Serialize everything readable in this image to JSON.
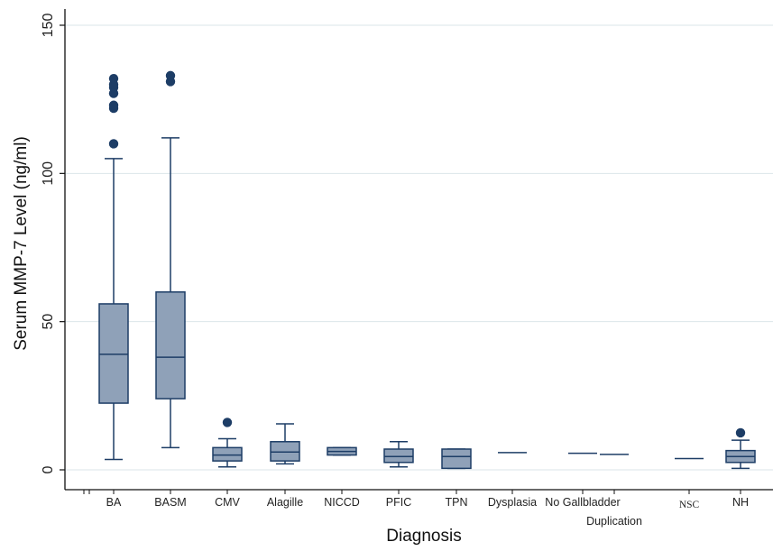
{
  "chart_data": {
    "type": "box",
    "title": "",
    "xlabel": "Diagnosis",
    "ylabel": "Serum MMP-7 Level (ng/ml)",
    "ylim": [
      0,
      150
    ],
    "yticks": [
      0,
      50,
      100,
      150
    ],
    "grid": true,
    "colors": {
      "box_fill": "#8fa1b8",
      "box_stroke": "#1d3d66",
      "outlier": "#1d3d66",
      "grid": "#dbe6ea"
    },
    "categories": [
      {
        "label": "BA",
        "label2": "",
        "min": 3.5,
        "q1": 22.5,
        "median": 39,
        "q3": 56,
        "max": 105,
        "outliers": [
          110,
          122,
          123,
          127,
          129,
          130,
          132
        ]
      },
      {
        "label": "BASM",
        "label2": "",
        "min": 7.5,
        "q1": 24,
        "median": 38,
        "q3": 60,
        "max": 112,
        "outliers": [
          131,
          133
        ]
      },
      {
        "label": "CMV",
        "label2": "",
        "min": 1,
        "q1": 3,
        "median": 5,
        "q3": 7.5,
        "max": 10.5,
        "outliers": [
          16
        ]
      },
      {
        "label": "Alagille",
        "label2": "",
        "min": 2,
        "q1": 3,
        "median": 6,
        "q3": 9.5,
        "max": 15.5,
        "outliers": []
      },
      {
        "label": "NICCD",
        "label2": "",
        "min": 5,
        "q1": 5,
        "median": 6.2,
        "q3": 7.5,
        "max": 7.5,
        "outliers": []
      },
      {
        "label": "PFIC",
        "label2": "",
        "min": 1,
        "q1": 2.5,
        "median": 4.5,
        "q3": 7,
        "max": 9.5,
        "outliers": []
      },
      {
        "label": "TPN",
        "label2": "",
        "min": 0.5,
        "q1": 0.5,
        "median": 4.5,
        "q3": 7,
        "max": 7,
        "outliers": []
      },
      {
        "label": "Dysplasia",
        "label2": "",
        "min": 5.8,
        "q1": 5.8,
        "median": 5.8,
        "q3": 5.8,
        "max": 5.8,
        "outliers": []
      },
      {
        "label": "No Gallbladder",
        "label2": "",
        "min": 5.6,
        "q1": 5.6,
        "median": 5.6,
        "q3": 5.6,
        "max": 5.6,
        "outliers": []
      },
      {
        "label": "",
        "label2": "Duplication",
        "min": 5.2,
        "q1": 5.2,
        "median": 5.2,
        "q3": 5.2,
        "max": 5.2,
        "outliers": []
      },
      {
        "label": "NSC",
        "label2": "",
        "min": 3.8,
        "q1": 3.8,
        "median": 3.8,
        "q3": 3.8,
        "max": 3.8,
        "outliers": []
      },
      {
        "label": "NH",
        "label2": "",
        "min": 0.5,
        "q1": 2.5,
        "median": 4.5,
        "q3": 6.5,
        "max": 10,
        "outliers": [
          12.5
        ]
      }
    ]
  }
}
